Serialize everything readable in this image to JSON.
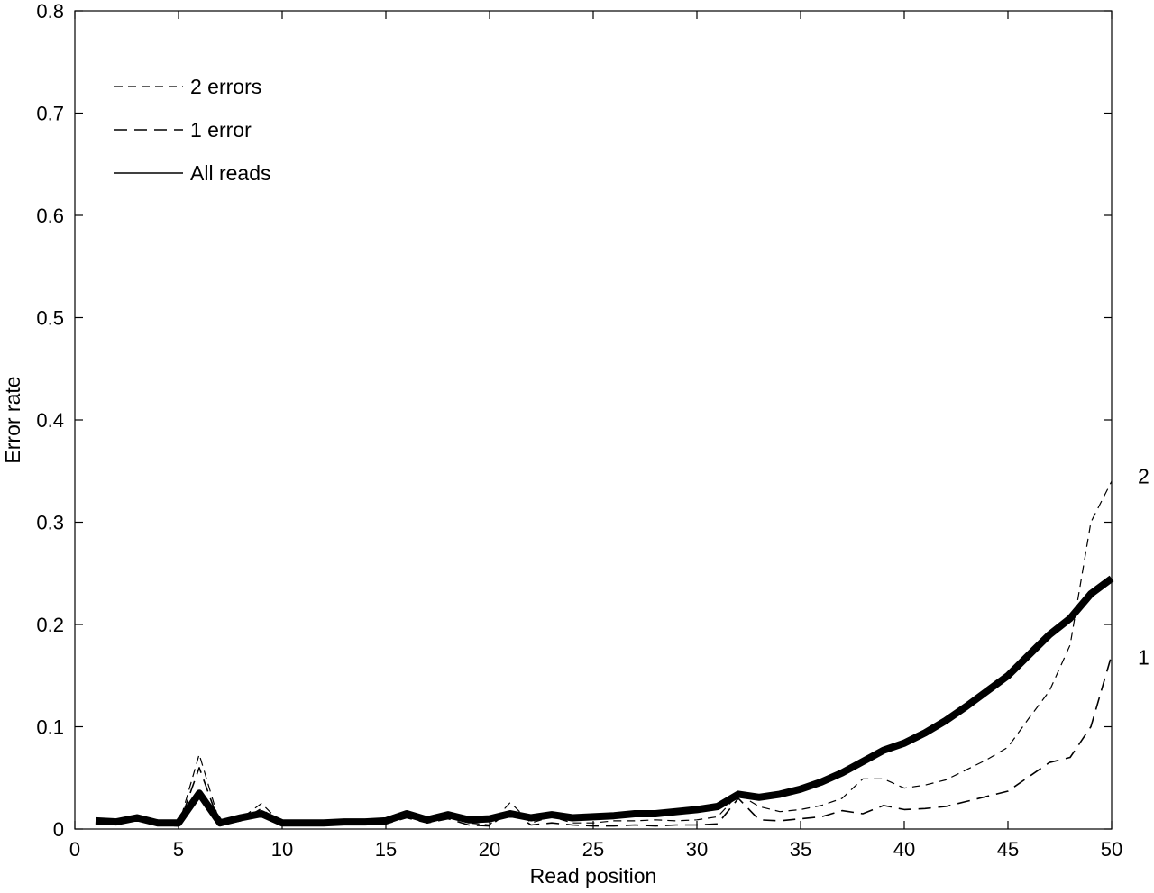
{
  "chart_data": {
    "type": "line",
    "title": "",
    "xlabel": "Read position",
    "ylabel": "Error rate",
    "xlim": [
      0,
      50
    ],
    "ylim": [
      0,
      0.8
    ],
    "xticks": [
      0,
      5,
      10,
      15,
      20,
      25,
      30,
      35,
      40,
      45,
      50
    ],
    "yticks": [
      0,
      0.1,
      0.2,
      0.3,
      0.4,
      0.5,
      0.6,
      0.7,
      0.8
    ],
    "xtick_labels": [
      "0",
      "5",
      "10",
      "15",
      "20",
      "25",
      "30",
      "35",
      "40",
      "45",
      "50"
    ],
    "ytick_labels": [
      "0",
      "0.1",
      "0.2",
      "0.3",
      "0.4",
      "0.5",
      "0.6",
      "0.7",
      "0.8"
    ],
    "grid": false,
    "legend_position": "top-left",
    "x": [
      1,
      2,
      3,
      4,
      5,
      6,
      7,
      8,
      9,
      10,
      11,
      12,
      13,
      14,
      15,
      16,
      17,
      18,
      19,
      20,
      21,
      22,
      23,
      24,
      25,
      26,
      27,
      28,
      29,
      30,
      31,
      32,
      33,
      34,
      35,
      36,
      37,
      38,
      39,
      40,
      41,
      42,
      43,
      44,
      45,
      46,
      47,
      48,
      49,
      50
    ],
    "series": [
      {
        "name": "2 errors",
        "style": "dashed-thin",
        "color": "#000000",
        "values": [
          0.006,
          0.005,
          0.009,
          0.004,
          0.003,
          0.073,
          0.005,
          0.01,
          0.025,
          0.005,
          0.005,
          0.005,
          0.006,
          0.006,
          0.006,
          0.013,
          0.008,
          0.013,
          0.006,
          0.004,
          0.026,
          0.006,
          0.012,
          0.006,
          0.006,
          0.008,
          0.008,
          0.009,
          0.008,
          0.009,
          0.012,
          0.034,
          0.022,
          0.017,
          0.019,
          0.023,
          0.03,
          0.049,
          0.049,
          0.04,
          0.043,
          0.048,
          0.058,
          0.068,
          0.08,
          0.108,
          0.135,
          0.18,
          0.3,
          0.34
        ]
      },
      {
        "name": "1 error",
        "style": "dashed",
        "color": "#000000",
        "values": [
          0.006,
          0.005,
          0.009,
          0.004,
          0.003,
          0.06,
          0.004,
          0.008,
          0.02,
          0.004,
          0.004,
          0.004,
          0.005,
          0.005,
          0.005,
          0.011,
          0.006,
          0.01,
          0.004,
          0.003,
          0.018,
          0.004,
          0.006,
          0.004,
          0.003,
          0.003,
          0.004,
          0.003,
          0.004,
          0.004,
          0.005,
          0.03,
          0.009,
          0.008,
          0.01,
          0.012,
          0.018,
          0.015,
          0.023,
          0.019,
          0.02,
          0.022,
          0.027,
          0.032,
          0.037,
          0.051,
          0.065,
          0.07,
          0.1,
          0.17
        ]
      },
      {
        "name": "All reads",
        "style": "solid-thick",
        "color": "#000000",
        "values": [
          0.008,
          0.007,
          0.011,
          0.006,
          0.006,
          0.035,
          0.006,
          0.011,
          0.015,
          0.006,
          0.006,
          0.006,
          0.007,
          0.007,
          0.008,
          0.015,
          0.009,
          0.014,
          0.009,
          0.01,
          0.015,
          0.011,
          0.014,
          0.011,
          0.012,
          0.013,
          0.015,
          0.015,
          0.017,
          0.019,
          0.022,
          0.034,
          0.031,
          0.034,
          0.039,
          0.046,
          0.055,
          0.066,
          0.077,
          0.084,
          0.094,
          0.106,
          0.12,
          0.135,
          0.15,
          0.17,
          0.19,
          0.206,
          0.23,
          0.245
        ]
      }
    ],
    "end_labels": [
      {
        "text": "2",
        "y": 0.345
      },
      {
        "text": "1",
        "y": 0.168
      }
    ]
  }
}
